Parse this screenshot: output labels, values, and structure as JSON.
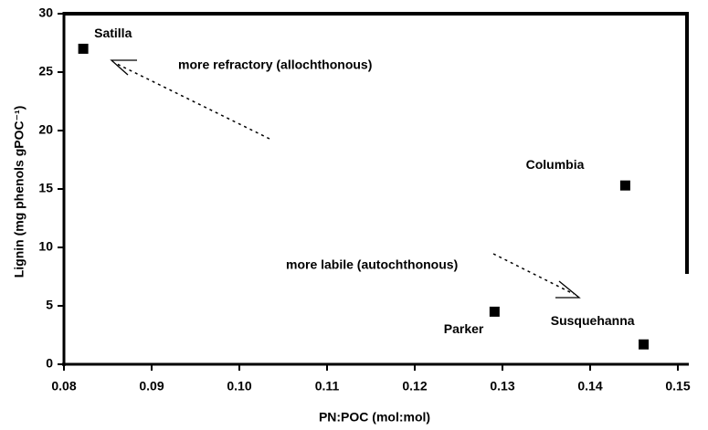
{
  "chart_data": {
    "type": "scatter",
    "x_label": "PN:POC (mol:mol)",
    "y_label": "Lignin (mg phenols gPOC⁻¹)",
    "series": [
      {
        "color": "#000000",
        "labels": [
          "Satilla",
          "Columbia",
          "Parker",
          "Susquehanna"
        ],
        "x": [
          0.0822,
          0.144,
          0.1291,
          0.1461
        ],
        "values": [
          27.0,
          15.3,
          4.5,
          1.7
        ]
      }
    ],
    "annotations": [
      "more refractory (allochthonous)",
      "more labile (autochthonous)"
    ],
    "xlim": [
      0.08,
      0.15
    ],
    "xticks": [
      0.08,
      0.09,
      {
        "value": 0.1,
        "label": "0.10"
      },
      0.11,
      0.12,
      0.13,
      0.14,
      0.15
    ],
    "ylim": [
      0,
      30
    ],
    "yticks": [
      0,
      5,
      10,
      15,
      20,
      25,
      30
    ]
  }
}
